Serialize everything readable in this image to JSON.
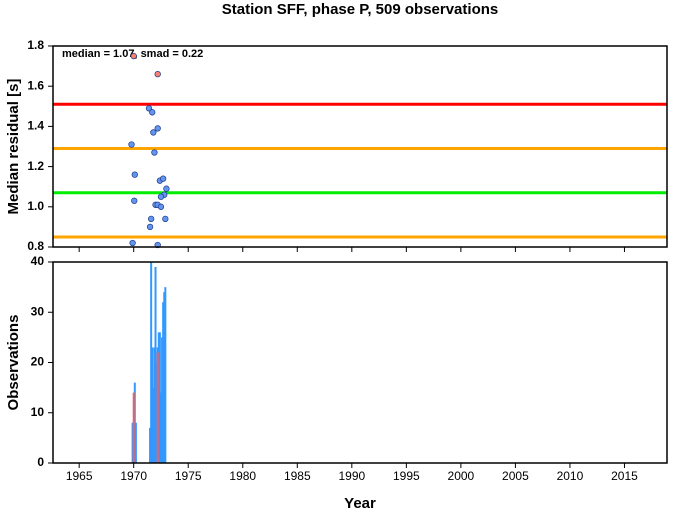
{
  "chart_data": [
    {
      "type": "scatter",
      "title": "Station SFF, phase P, 509 observations",
      "y_label": "Median residual [s]",
      "annotation": "median = 1.07, smad = 0.22",
      "xlim": [
        1962.6,
        2018.9
      ],
      "ylim": [
        0.8,
        1.8
      ],
      "yticks": [
        0.8,
        {
          "value": 1,
          "label": "1.0"
        },
        1.2,
        1.4,
        1.6,
        1.8
      ],
      "hlines": [
        {
          "value": 1.51,
          "color": "#ff0000"
        },
        {
          "value": 1.29,
          "color": "#ffa500"
        },
        {
          "value": 1.07,
          "color": "#00ee00"
        },
        {
          "value": 0.85,
          "color": "#ffa500"
        }
      ],
      "series": [
        {
          "color": "#6495ed",
          "x": [
            1969.8,
            1970.1,
            1970.05,
            1969.9,
            1971.4,
            1971.7,
            1972.2,
            1971.8,
            1971.9,
            1972.4,
            1972.7,
            1973.0,
            1972.8,
            1972.5,
            1972.0,
            1972.2,
            1972.5,
            1971.6,
            1972.9,
            1971.5,
            1972.2
          ],
          "values": [
            1.31,
            1.16,
            1.03,
            0.82,
            1.49,
            1.47,
            1.39,
            1.37,
            1.27,
            1.13,
            1.14,
            1.09,
            1.06,
            1.05,
            1.01,
            1.01,
            1.0,
            0.94,
            0.94,
            0.9,
            0.81
          ]
        },
        {
          "color": "#fa8072",
          "x": [
            1970.0,
            1972.2
          ],
          "values": [
            1.75,
            1.66
          ]
        }
      ]
    },
    {
      "type": "bar",
      "y_label": "Observations",
      "x_label": "Year",
      "xlim": [
        1962.6,
        2018.9
      ],
      "ylim": [
        0,
        40
      ],
      "yticks": [
        0,
        10,
        20,
        30,
        40
      ],
      "xticks": [
        1965,
        1970,
        1975,
        1980,
        1985,
        1990,
        1995,
        2000,
        2005,
        2010,
        2015
      ],
      "series": [
        {
          "color": "#3399ff",
          "x": [
            1969.9,
            1970.1,
            1970.2,
            1971.5,
            1971.6,
            1971.7,
            1971.8,
            1971.9,
            1972.0,
            1972.1,
            1972.2,
            1972.3,
            1972.4,
            1972.5,
            1972.6,
            1972.7,
            1972.8,
            1972.9
          ],
          "values": [
            8,
            16,
            8,
            7,
            40,
            23,
            15,
            23,
            39,
            20,
            23,
            26,
            26,
            14,
            25,
            32,
            34,
            35
          ]
        },
        {
          "color": "#f06060",
          "x": [
            1970.0,
            1972.2
          ],
          "values": [
            14,
            22
          ]
        }
      ]
    }
  ]
}
